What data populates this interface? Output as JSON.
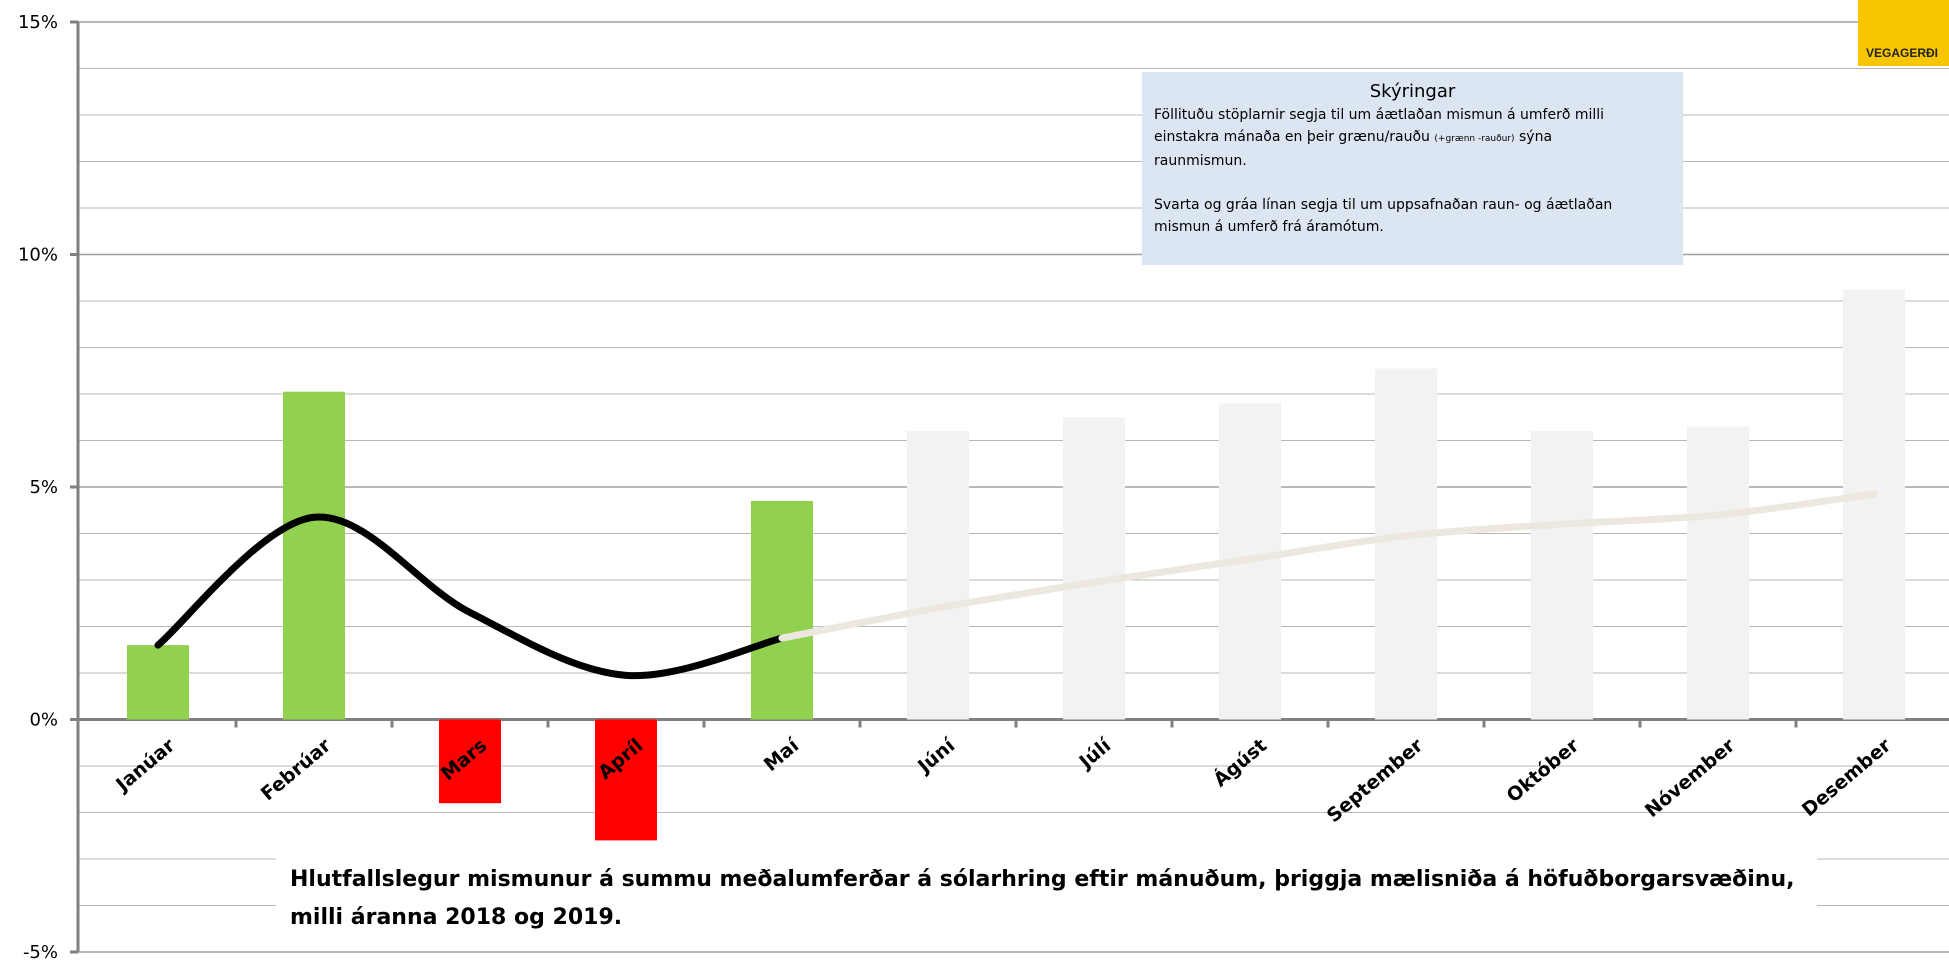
{
  "chart_data": {
    "type": "bar_line",
    "title_lines": [
      "Hlutfallslegur mismunur á summu meðalumferðar á sólarhring eftir mánuðum, þriggja mælisniða á höfuðborgarsvæðinu,",
      "milli áranna 2018 og 2019."
    ],
    "categories": [
      "Janúar",
      "Febrúar",
      "Mars",
      "Apríl",
      "Maí",
      "Júní",
      "Júlí",
      "Ágúst",
      "September",
      "Október",
      "Nóvember",
      "Desember"
    ],
    "bars": {
      "values": [
        1.6,
        7.05,
        -1.8,
        -2.6,
        4.7,
        6.2,
        6.5,
        6.8,
        7.55,
        6.2,
        6.3,
        9.25
      ],
      "colors": [
        "#92d050",
        "#92d050",
        "#ff0000",
        "#ff0000",
        "#92d050",
        "#f2f2f2",
        "#f2f2f2",
        "#f2f2f2",
        "#f2f2f2",
        "#f2f2f2",
        "#f2f2f2",
        "#f2f2f2"
      ]
    },
    "series": [
      {
        "color": "#000000",
        "values": [
          1.6,
          4.35,
          2.3,
          0.95,
          1.75,
          null,
          null,
          null,
          null,
          null,
          null,
          null
        ]
      },
      {
        "color": "#ece8df",
        "values": [
          null,
          null,
          null,
          null,
          1.75,
          2.4,
          2.95,
          3.45,
          3.95,
          4.2,
          4.4,
          4.85
        ]
      }
    ],
    "ylim": [
      -5,
      15
    ],
    "yticks": [
      {
        "value": -5,
        "label": "-5%"
      },
      {
        "value": 0,
        "label": "0%"
      },
      {
        "value": 5,
        "label": "5%"
      },
      {
        "value": 10,
        "label": "10%"
      },
      {
        "value": 15,
        "label": "15%"
      }
    ],
    "grid_ticks": [
      -4,
      -3,
      -2,
      -1,
      1,
      2,
      3,
      4,
      6,
      7,
      8,
      9,
      11,
      12,
      13,
      14
    ],
    "legend_box": {
      "title": "Skýringar",
      "p1": [
        "Föllituðu stöplarnir segja til um áætlaðan mismun á umferð milli",
        "einstakra mánaða en þeir grænu/rauðu",
        "(+grænn -rauður)",
        "sýna",
        "raunmismun."
      ],
      "p2": [
        "Svarta og gráa línan segja til um uppsafnaðan raun- og áætlaðan",
        "mismun á umferð frá áramótum."
      ]
    },
    "logo": "VEGAGERÐI"
  }
}
